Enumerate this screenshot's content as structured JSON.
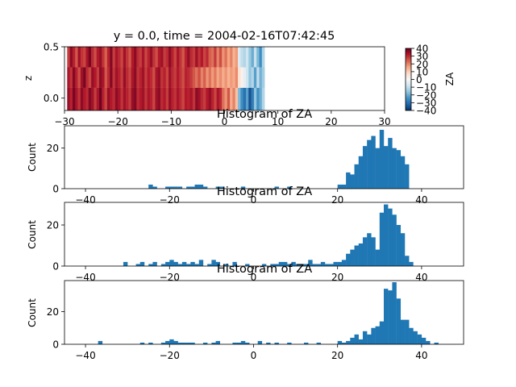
{
  "chart_data": [
    {
      "type": "heatmap",
      "title": "y = 0.0, time = 2004-02-16T07:42:45",
      "xlabel": "",
      "ylabel": "z",
      "xlim": [
        -30,
        30
      ],
      "ylim": [
        -0.12,
        0.5
      ],
      "x_ticks": [
        -30,
        -20,
        -10,
        0,
        10,
        20,
        30
      ],
      "y_ticks": [
        0.0,
        0.5
      ],
      "x_tick_labels": [
        "−30",
        "−20",
        "−10",
        "0",
        "10",
        "20",
        "30"
      ],
      "y_tick_labels": [
        "0.0",
        "0.5"
      ],
      "rows": [
        {
          "z_range": [
            0.3,
            0.5
          ],
          "x_start": -29.5,
          "x_step": 0.5,
          "values": [
            28,
            36,
            31,
            25,
            34,
            29,
            27,
            33,
            38,
            30,
            26,
            32,
            35,
            29,
            24,
            31,
            37,
            28,
            33,
            30,
            27,
            34,
            29,
            25,
            32,
            36,
            30,
            28,
            33,
            27,
            31,
            35,
            29,
            26,
            32,
            34,
            28,
            30,
            36,
            31,
            27,
            33,
            29,
            25,
            31,
            35,
            30,
            28,
            34,
            29,
            32,
            27,
            30,
            24,
            22,
            28,
            20,
            26,
            18,
            22,
            16,
            20,
            14,
            17,
            -6,
            -10,
            -12,
            -8,
            -15,
            -20,
            -9,
            -18,
            -25,
            -12
          ]
        },
        {
          "z_range": [
            0.1,
            0.3
          ],
          "x_start": -29.5,
          "x_step": 0.5,
          "values": [
            33,
            29,
            37,
            31,
            26,
            34,
            38,
            30,
            27,
            35,
            32,
            28,
            36,
            33,
            25,
            30,
            37,
            29,
            34,
            31,
            28,
            35,
            30,
            27,
            33,
            36,
            29,
            31,
            34,
            28,
            32,
            30,
            26,
            33,
            35,
            29,
            31,
            27,
            34,
            30,
            28,
            32,
            29,
            26,
            31,
            30,
            28,
            25,
            22,
            26,
            20,
            24,
            18,
            22,
            17,
            21,
            16,
            19,
            15,
            18,
            14,
            17,
            15,
            19,
            6,
            2,
            -4,
            -8,
            -16,
            -12,
            -22,
            -10,
            -19,
            -14
          ]
        },
        {
          "z_range": [
            -0.12,
            0.1
          ],
          "x_start": -29.5,
          "x_step": 0.5,
          "values": [
            35,
            31,
            38,
            33,
            29,
            36,
            32,
            30,
            37,
            34,
            28,
            33,
            39,
            31,
            27,
            35,
            32,
            30,
            36,
            33,
            29,
            34,
            31,
            28,
            35,
            37,
            30,
            32,
            34,
            29,
            33,
            31,
            27,
            34,
            36,
            30,
            32,
            28,
            35,
            31,
            29,
            33,
            30,
            27,
            32,
            31,
            33,
            29,
            36,
            34,
            30,
            28,
            32,
            35,
            31,
            27,
            33,
            30,
            22,
            18,
            25,
            15,
            20,
            12,
            -18,
            -25,
            -30,
            -22,
            -35,
            -28,
            -16,
            -24,
            -20,
            -12
          ]
        }
      ],
      "colorbar": {
        "label": "ZA",
        "min": -40,
        "max": 40,
        "ticks": [
          40,
          30,
          20,
          10,
          0,
          -10,
          -20,
          -30,
          -40
        ],
        "tick_labels": [
          "40",
          "30",
          "20",
          "10",
          "0",
          "−10",
          "−20",
          "−30",
          "−40"
        ],
        "colormap": "RdBu_r"
      }
    },
    {
      "type": "bar",
      "title": "Histogram of ZA",
      "xlabel": "",
      "ylabel": "Count",
      "xlim": [
        -45,
        50
      ],
      "ylim": [
        0,
        31
      ],
      "x_ticks": [
        -40,
        -20,
        0,
        20,
        40
      ],
      "x_tick_labels": [
        "−40",
        "−20",
        "0",
        "20",
        "40"
      ],
      "y_ticks": [
        0,
        20
      ],
      "bin_width": 1,
      "bins": [
        [
          -25,
          2
        ],
        [
          -24,
          1
        ],
        [
          -21,
          1
        ],
        [
          -20,
          1
        ],
        [
          -19,
          1
        ],
        [
          -18,
          1
        ],
        [
          -16,
          1
        ],
        [
          -15,
          1
        ],
        [
          -14,
          2
        ],
        [
          -13,
          2
        ],
        [
          -12,
          1
        ],
        [
          -9,
          1
        ],
        [
          -8,
          1
        ],
        [
          -3,
          1
        ],
        [
          5,
          1
        ],
        [
          8,
          1
        ],
        [
          20,
          2
        ],
        [
          21,
          2
        ],
        [
          22,
          8
        ],
        [
          23,
          7
        ],
        [
          24,
          12
        ],
        [
          25,
          16
        ],
        [
          26,
          21
        ],
        [
          27,
          24
        ],
        [
          28,
          26
        ],
        [
          29,
          20
        ],
        [
          30,
          29
        ],
        [
          31,
          21
        ],
        [
          32,
          25
        ],
        [
          33,
          20
        ],
        [
          34,
          19
        ],
        [
          35,
          16
        ],
        [
          36,
          12
        ]
      ],
      "color": "#1f77b4"
    },
    {
      "type": "bar",
      "title": "Histogram of ZA",
      "xlabel": "",
      "ylabel": "Count",
      "xlim": [
        -45,
        50
      ],
      "ylim": [
        0,
        31
      ],
      "x_ticks": [
        -40,
        -20,
        0,
        20,
        40
      ],
      "x_tick_labels": [
        "−40",
        "−20",
        "0",
        "20",
        "40"
      ],
      "y_ticks": [
        0,
        20
      ],
      "bin_width": 1,
      "bins": [
        [
          -31,
          2
        ],
        [
          -28,
          1
        ],
        [
          -27,
          2
        ],
        [
          -25,
          1
        ],
        [
          -24,
          2
        ],
        [
          -22,
          1
        ],
        [
          -21,
          2
        ],
        [
          -20,
          3
        ],
        [
          -19,
          2
        ],
        [
          -18,
          1
        ],
        [
          -17,
          2
        ],
        [
          -16,
          1
        ],
        [
          -15,
          2
        ],
        [
          -14,
          1
        ],
        [
          -13,
          3
        ],
        [
          -11,
          1
        ],
        [
          -10,
          3
        ],
        [
          -9,
          2
        ],
        [
          -7,
          1
        ],
        [
          -5,
          2
        ],
        [
          -2,
          1
        ],
        [
          2,
          1
        ],
        [
          4,
          1
        ],
        [
          5,
          1
        ],
        [
          6,
          2
        ],
        [
          7,
          2
        ],
        [
          8,
          1
        ],
        [
          9,
          2
        ],
        [
          10,
          1
        ],
        [
          11,
          1
        ],
        [
          12,
          1
        ],
        [
          13,
          3
        ],
        [
          14,
          1
        ],
        [
          15,
          1
        ],
        [
          16,
          2
        ],
        [
          17,
          1
        ],
        [
          18,
          1
        ],
        [
          19,
          2
        ],
        [
          20,
          2
        ],
        [
          21,
          3
        ],
        [
          22,
          6
        ],
        [
          23,
          8
        ],
        [
          24,
          10
        ],
        [
          25,
          11
        ],
        [
          26,
          14
        ],
        [
          27,
          16
        ],
        [
          28,
          14
        ],
        [
          29,
          8
        ],
        [
          30,
          26
        ],
        [
          31,
          30
        ],
        [
          32,
          28
        ],
        [
          33,
          25
        ],
        [
          34,
          20
        ],
        [
          35,
          16
        ],
        [
          36,
          5
        ],
        [
          37,
          2
        ]
      ],
      "color": "#1f77b4"
    },
    {
      "type": "bar",
      "title": "Histogram of ZA",
      "xlabel": "",
      "ylabel": "Count",
      "xlim": [
        -45,
        50
      ],
      "ylim": [
        0,
        39
      ],
      "x_ticks": [
        -40,
        -20,
        0,
        20,
        40
      ],
      "x_tick_labels": [
        "−40",
        "−20",
        "0",
        "20",
        "40"
      ],
      "y_ticks": [
        0,
        20
      ],
      "bin_width": 1,
      "bins": [
        [
          -37,
          2
        ],
        [
          -27,
          1
        ],
        [
          -25,
          1
        ],
        [
          -22,
          1
        ],
        [
          -21,
          2
        ],
        [
          -20,
          3
        ],
        [
          -19,
          2
        ],
        [
          -18,
          1
        ],
        [
          -17,
          1
        ],
        [
          -16,
          1
        ],
        [
          -15,
          1
        ],
        [
          -12,
          1
        ],
        [
          -10,
          1
        ],
        [
          -9,
          2
        ],
        [
          -5,
          1
        ],
        [
          -4,
          1
        ],
        [
          -3,
          2
        ],
        [
          -2,
          1
        ],
        [
          1,
          2
        ],
        [
          3,
          1
        ],
        [
          5,
          1
        ],
        [
          8,
          1
        ],
        [
          12,
          1
        ],
        [
          15,
          1
        ],
        [
          20,
          2
        ],
        [
          21,
          1
        ],
        [
          22,
          2
        ],
        [
          23,
          4
        ],
        [
          24,
          6
        ],
        [
          25,
          3
        ],
        [
          26,
          8
        ],
        [
          27,
          6
        ],
        [
          28,
          10
        ],
        [
          29,
          11
        ],
        [
          30,
          14
        ],
        [
          31,
          34
        ],
        [
          32,
          33
        ],
        [
          33,
          38
        ],
        [
          34,
          28
        ],
        [
          35,
          15
        ],
        [
          36,
          15
        ],
        [
          37,
          10
        ],
        [
          38,
          8
        ],
        [
          39,
          6
        ],
        [
          40,
          4
        ],
        [
          41,
          2
        ],
        [
          43,
          1
        ]
      ],
      "color": "#1f77b4"
    }
  ]
}
